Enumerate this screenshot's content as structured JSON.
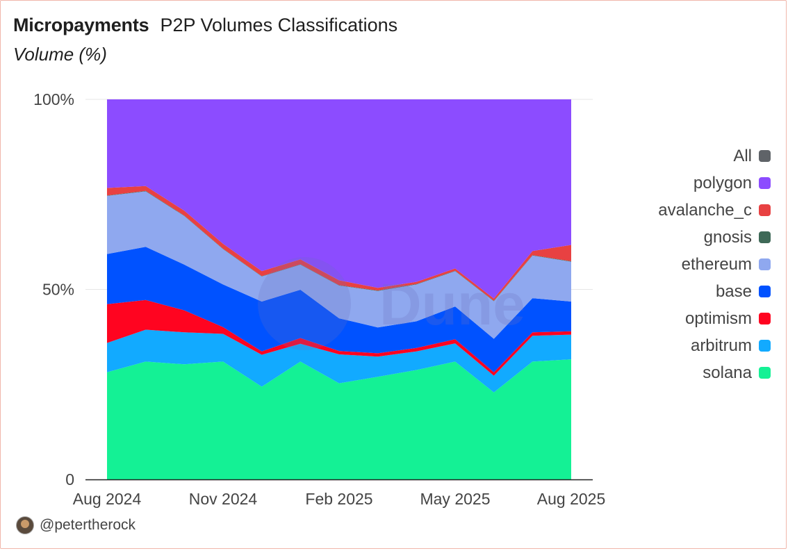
{
  "header": {
    "brand": "Micropayments",
    "title": "P2P Volumes Classifications",
    "subtitle": "Volume (%)"
  },
  "footer": {
    "handle": "@petertherock",
    "avatar_icon": "user-avatar-icon"
  },
  "watermark": "Dune",
  "legend": [
    {
      "label": "All",
      "color": "#5f6368"
    },
    {
      "label": "polygon",
      "color": "#8c4cff"
    },
    {
      "label": "avalanche_c",
      "color": "#e84142"
    },
    {
      "label": "gnosis",
      "color": "#3e6957"
    },
    {
      "label": "ethereum",
      "color": "#8fa8ef"
    },
    {
      "label": "base",
      "color": "#0052ff"
    },
    {
      "label": "optimism",
      "color": "#ff0420"
    },
    {
      "label": "arbitrum",
      "color": "#12aaff"
    },
    {
      "label": "solana",
      "color": "#14f195"
    }
  ],
  "chart_data": {
    "type": "area",
    "stacked": true,
    "normalized": true,
    "x": [
      "Aug 2024",
      "Sep 2024",
      "Oct 2024",
      "Nov 2024",
      "Dec 2024",
      "Jan 2025",
      "Feb 2025",
      "Mar 2025",
      "Apr 2025",
      "May 2025",
      "Jun 2025",
      "Jul 2025",
      "Aug 2025"
    ],
    "x_tick_labels": [
      "Aug 2024",
      "Nov 2024",
      "Feb 2025",
      "May 2025",
      "Aug 2025"
    ],
    "y_tick_labels": [
      "0",
      "50%",
      "100%"
    ],
    "ylim": [
      0,
      100
    ],
    "grid": true,
    "legend_position": "right",
    "series": [
      {
        "name": "solana",
        "color": "#14f195",
        "values": [
          28.2,
          31.0,
          30.3,
          31.0,
          24.4,
          31.0,
          25.3,
          27.0,
          28.8,
          31.0,
          22.9,
          31.0,
          31.6
        ]
      },
      {
        "name": "arbitrum",
        "color": "#12aaff",
        "values": [
          7.7,
          8.4,
          8.4,
          7.3,
          8.4,
          4.7,
          7.6,
          5.3,
          4.9,
          4.8,
          4.4,
          6.8,
          6.5
        ]
      },
      {
        "name": "optimism",
        "color": "#ff0420",
        "values": [
          10.2,
          7.8,
          5.8,
          1.8,
          0.9,
          1.5,
          0.9,
          0.9,
          0.9,
          1.1,
          0.9,
          0.9,
          0.9
        ]
      },
      {
        "name": "base",
        "color": "#0052ff",
        "values": [
          13.2,
          14.0,
          12.0,
          11.2,
          13.1,
          12.7,
          8.6,
          6.8,
          7.0,
          8.6,
          8.8,
          9.0,
          7.8
        ]
      },
      {
        "name": "ethereum",
        "color": "#8fa8ef",
        "values": [
          15.3,
          14.6,
          12.8,
          9.3,
          6.6,
          6.6,
          8.6,
          9.6,
          9.7,
          9.3,
          9.9,
          11.2,
          10.5
        ]
      },
      {
        "name": "gnosis",
        "color": "#3e6957",
        "values": [
          0.1,
          0.1,
          0.1,
          0.1,
          0.1,
          0.1,
          0.1,
          0.1,
          0.1,
          0.1,
          0.1,
          0.1,
          0.1
        ]
      },
      {
        "name": "avalanche_c",
        "color": "#e84142",
        "values": [
          2.0,
          1.3,
          1.3,
          1.3,
          1.3,
          1.3,
          1.3,
          0.7,
          0.6,
          0.6,
          0.6,
          1.1,
          4.3
        ]
      },
      {
        "name": "polygon",
        "color": "#8c4cff",
        "values": [
          23.3,
          22.8,
          29.3,
          38.0,
          45.2,
          42.1,
          47.6,
          49.6,
          48.0,
          44.5,
          52.4,
          39.9,
          38.3
        ]
      }
    ]
  }
}
